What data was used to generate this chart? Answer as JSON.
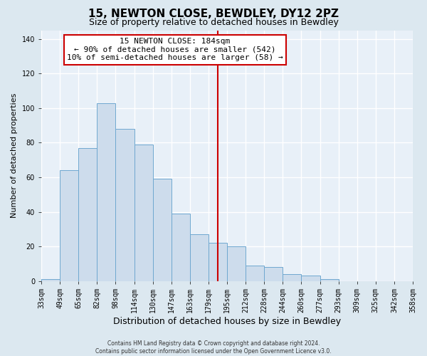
{
  "title": "15, NEWTON CLOSE, BEWDLEY, DY12 2PZ",
  "subtitle": "Size of property relative to detached houses in Bewdley",
  "xlabel": "Distribution of detached houses by size in Bewdley",
  "ylabel": "Number of detached properties",
  "footer_line1": "Contains HM Land Registry data © Crown copyright and database right 2024.",
  "footer_line2": "Contains public sector information licensed under the Open Government Licence v3.0.",
  "bin_labels": [
    "33sqm",
    "49sqm",
    "65sqm",
    "82sqm",
    "98sqm",
    "114sqm",
    "130sqm",
    "147sqm",
    "163sqm",
    "179sqm",
    "195sqm",
    "212sqm",
    "228sqm",
    "244sqm",
    "260sqm",
    "277sqm",
    "293sqm",
    "309sqm",
    "325sqm",
    "342sqm",
    "358sqm"
  ],
  "bar_values": [
    1,
    64,
    77,
    103,
    88,
    79,
    59,
    39,
    27,
    22,
    20,
    9,
    8,
    4,
    3,
    1,
    0,
    0,
    0,
    0
  ],
  "bar_color": "#cddcec",
  "bar_edge_color": "#6fa8d0",
  "vline_x_index": 9.5,
  "vline_color": "#cc0000",
  "annotation_title": "15 NEWTON CLOSE: 184sqm",
  "annotation_line2": "← 90% of detached houses are smaller (542)",
  "annotation_line3": "10% of semi-detached houses are larger (58) →",
  "annotation_box_facecolor": "white",
  "annotation_box_edgecolor": "#cc0000",
  "ylim": [
    0,
    145
  ],
  "yticks": [
    0,
    20,
    40,
    60,
    80,
    100,
    120,
    140
  ],
  "background_color": "#dce8f0",
  "plot_bg_color": "#e8f0f8",
  "grid_color": "white",
  "title_fontsize": 11,
  "subtitle_fontsize": 9,
  "xlabel_fontsize": 9,
  "ylabel_fontsize": 8,
  "tick_fontsize": 7,
  "annotation_fontsize": 8,
  "footer_fontsize": 5.5
}
